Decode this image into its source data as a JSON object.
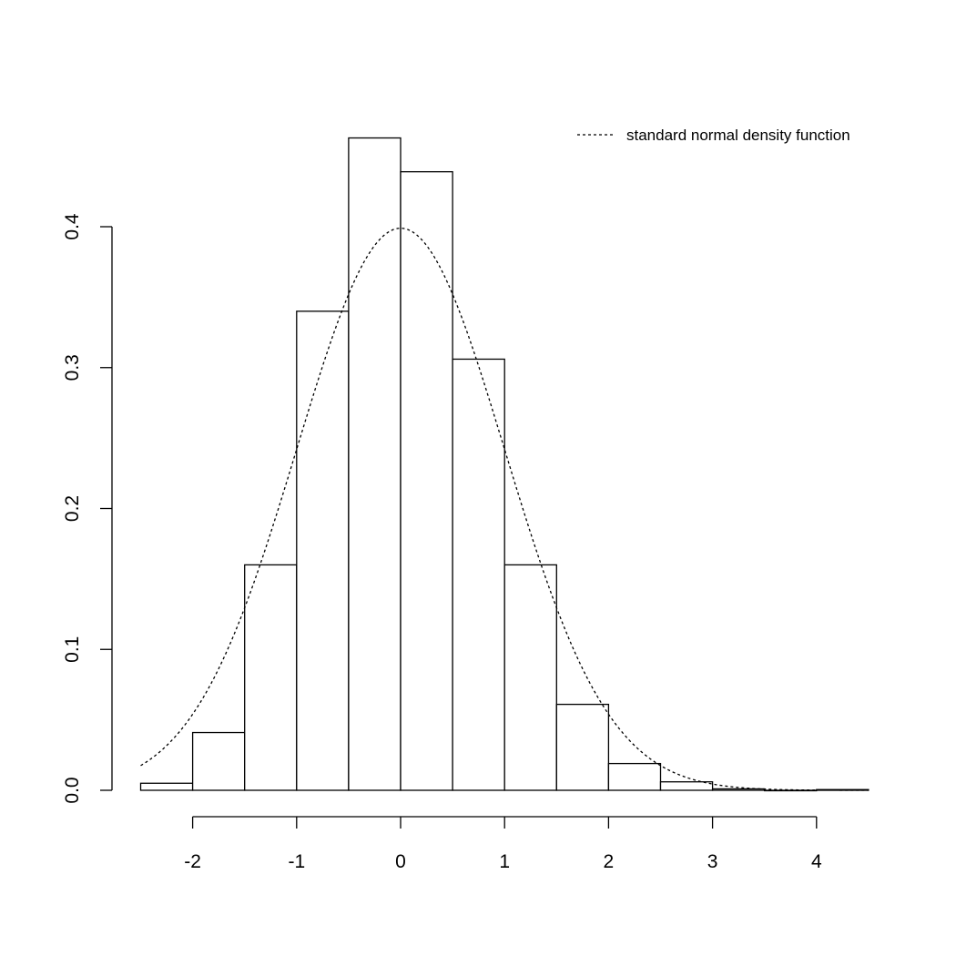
{
  "chart_data": {
    "type": "bar",
    "subtype": "histogram",
    "bins": [
      {
        "from": -2.5,
        "to": -2.0,
        "density": 0.005
      },
      {
        "from": -2.0,
        "to": -1.5,
        "density": 0.041
      },
      {
        "from": -1.5,
        "to": -1.0,
        "density": 0.16
      },
      {
        "from": -1.0,
        "to": -0.5,
        "density": 0.34
      },
      {
        "from": -0.5,
        "to": 0.0,
        "density": 0.463
      },
      {
        "from": 0.0,
        "to": 0.5,
        "density": 0.439
      },
      {
        "from": 0.5,
        "to": 1.0,
        "density": 0.306
      },
      {
        "from": 1.0,
        "to": 1.5,
        "density": 0.16
      },
      {
        "from": 1.5,
        "to": 2.0,
        "density": 0.061
      },
      {
        "from": 2.0,
        "to": 2.5,
        "density": 0.019
      },
      {
        "from": 2.5,
        "to": 3.0,
        "density": 0.006
      },
      {
        "from": 3.0,
        "to": 3.5,
        "density": 0.001
      },
      {
        "from": 3.5,
        "to": 4.0,
        "density": 0.0
      },
      {
        "from": 4.0,
        "to": 4.5,
        "density": 0.0005
      }
    ],
    "overlay": {
      "name": "standard normal density function",
      "type": "line",
      "style": "dotted",
      "function": "standard normal density",
      "x_range": [
        -2.5,
        4.5
      ]
    },
    "xlim": [
      -2.5,
      4.5
    ],
    "ylim": [
      0,
      0.4
    ],
    "x_ticks": [
      "-2",
      "-1",
      "0",
      "1",
      "2",
      "3",
      "4"
    ],
    "x_tick_values": [
      -2,
      -1,
      0,
      1,
      2,
      3,
      4
    ],
    "y_ticks": [
      "0.0",
      "0.1",
      "0.2",
      "0.3",
      "0.4"
    ],
    "y_tick_values": [
      0,
      0.1,
      0.2,
      0.3,
      0.4
    ],
    "legend": {
      "placement": "top-right",
      "entries": [
        "standard normal density function"
      ]
    },
    "grid": false,
    "title": "",
    "xlabel": "",
    "ylabel": ""
  }
}
